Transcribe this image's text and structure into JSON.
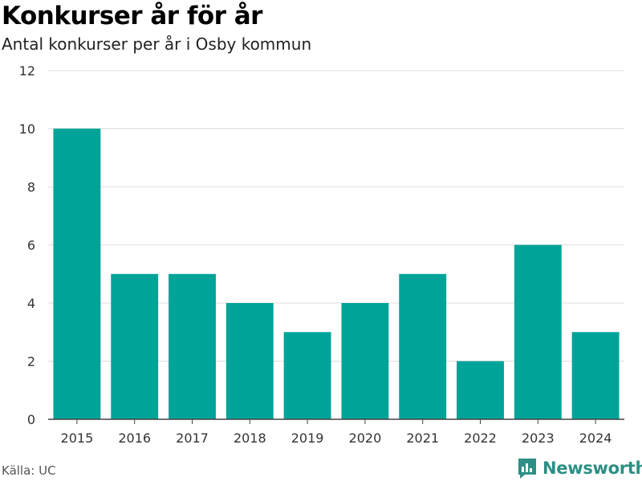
{
  "chart_data": {
    "type": "bar",
    "title": "Konkurser år för år",
    "subtitle": "Antal konkurser per år i Osby kommun",
    "categories": [
      "2015",
      "2016",
      "2017",
      "2018",
      "2019",
      "2020",
      "2021",
      "2022",
      "2023",
      "2024"
    ],
    "values": [
      10,
      5,
      5,
      4,
      3,
      4,
      5,
      2,
      6,
      3
    ],
    "ylim": [
      0,
      12
    ],
    "yticks": [
      0,
      2,
      4,
      6,
      8,
      10,
      12
    ],
    "grid": true,
    "bar_color": "#00a398",
    "xlabel": "",
    "ylabel": ""
  },
  "footer": {
    "source": "Källa: UC",
    "brand": "Newsworthy",
    "brand_color": "#2d8f85",
    "brand_icon": "bar-chart-speech-bubble-icon"
  }
}
